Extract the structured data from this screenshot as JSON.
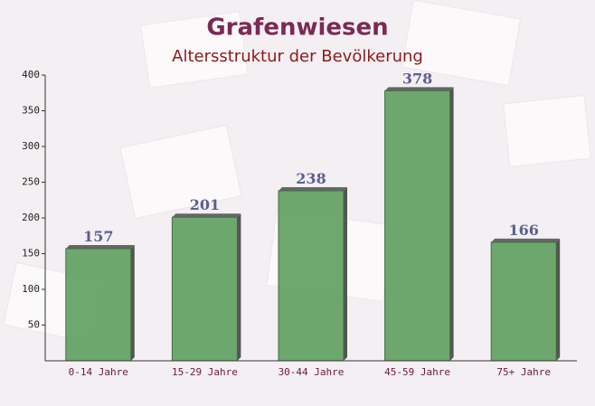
{
  "chart_data": {
    "type": "bar",
    "title": "Grafenwiesen",
    "subtitle": "Altersstruktur der Bevölkerung",
    "categories": [
      "0-14 Jahre",
      "15-29 Jahre",
      "30-44 Jahre",
      "45-59 Jahre",
      "75+ Jahre"
    ],
    "values": [
      157,
      201,
      238,
      378,
      166
    ],
    "color": "#5f9f5f",
    "ylim": [
      0,
      400
    ],
    "yticks": [
      50,
      100,
      150,
      200,
      250,
      300,
      350,
      400
    ],
    "grid": false
  }
}
